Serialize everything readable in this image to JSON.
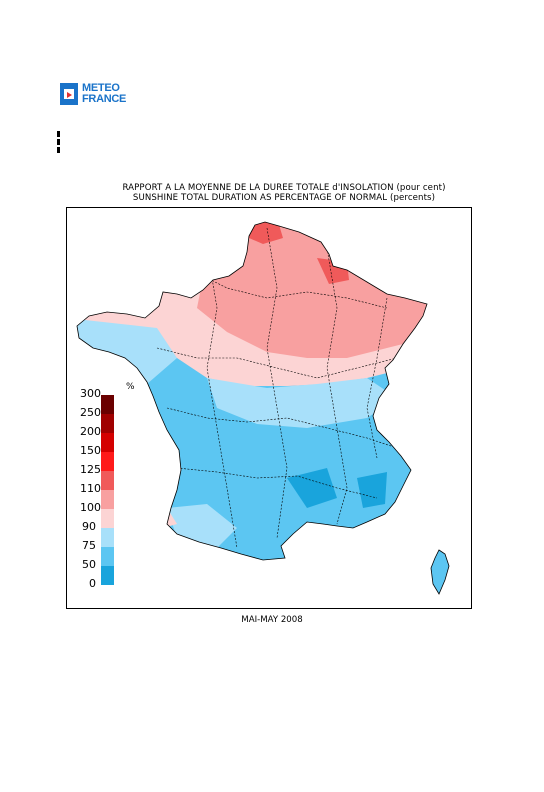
{
  "logo": {
    "line1": "METEO",
    "line2": "FRANCE"
  },
  "title_fr": "RAPPORT A LA MOYENNE DE LA DUREE TOTALE d'INSOLATION (pour cent)",
  "title_en": "SUNSHINE TOTAL DURATION AS PERCENTAGE OF NORMAL (percents)",
  "period": "MAI-MAY 2008",
  "legend": {
    "unit": "%",
    "levels": [
      {
        "label": "300",
        "color": "#6b0000"
      },
      {
        "label": "250",
        "color": "#a00000"
      },
      {
        "label": "200",
        "color": "#d40000"
      },
      {
        "label": "150",
        "color": "#ff1a1a"
      },
      {
        "label": "125",
        "color": "#f05a5a"
      },
      {
        "label": "110",
        "color": "#f8a0a0"
      },
      {
        "label": "100",
        "color": "#fcd4d4"
      },
      {
        "label": "90",
        "color": "#a8e0fa"
      },
      {
        "label": "75",
        "color": "#5cc6f2"
      },
      {
        "label": "50",
        "color": "#19a4dc"
      },
      {
        "label": "0",
        "color": "#0e6c96"
      }
    ]
  }
}
